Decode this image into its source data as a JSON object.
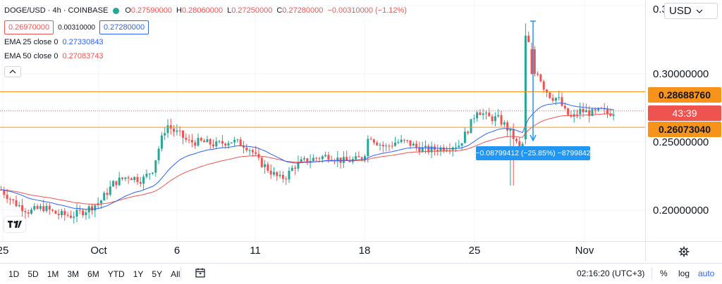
{
  "header": {
    "symbol": "DOGE/USD · 4h · COINBASE",
    "ohlc": [
      {
        "key": "O",
        "value": "0.27590000"
      },
      {
        "key": "H",
        "value": "0.28060000"
      },
      {
        "key": "L",
        "value": "0.27250000"
      },
      {
        "key": "C",
        "value": "0.27280000"
      }
    ],
    "change": "−0.00310000 (−1.12%)",
    "bid": "0.26970000",
    "spread": "0.00310000",
    "ask": "0.27280000",
    "collapse_icon": "chevron-up-icon"
  },
  "indicators": [
    {
      "label": "EMA 25 close 0",
      "value": "0.27330843",
      "color": "#2962ff"
    },
    {
      "label": "EMA 50 close 0",
      "value": "0.27083743",
      "color": "#ef5350"
    }
  ],
  "price_axis": {
    "currency": "USD",
    "currency_chevron": "chevron-down-icon",
    "ticks": [
      "0.30000000",
      "0.25000000",
      "0.20000000"
    ],
    "labels": {
      "resistance": "0.28688760",
      "countdown": "43:39",
      "support": "0.26073040"
    }
  },
  "time_axis": {
    "ticks": [
      "25",
      "Oct",
      "6",
      "11",
      "18",
      "25",
      "Nov"
    ]
  },
  "measure": {
    "text": "−0.08799412 (−25.85%) −8799842"
  },
  "bottom_bar": {
    "ranges": [
      "1D",
      "5D",
      "1M",
      "3M",
      "6M",
      "YTD",
      "1Y",
      "5Y",
      "All"
    ],
    "date_range_icon": "calendar-range-icon",
    "clock": "02:16:20 (UTC+3)",
    "percent": "%",
    "log": "log",
    "auto": "auto"
  },
  "colors": {
    "up": "#26a69a",
    "down": "#ef5350",
    "ema25": "#2962ff",
    "ema50": "#ef5350",
    "level": "#f7931a",
    "measure": "#2196f3"
  },
  "chart_data": {
    "type": "candlestick",
    "symbol": "DOGE/USD",
    "interval": "4h",
    "exchange": "COINBASE",
    "ylim": [
      0.17,
      0.36
    ],
    "x_ticks": [
      "25",
      "Oct",
      "6",
      "11",
      "18",
      "25",
      "Nov"
    ],
    "horizontal_levels": [
      0.2868876,
      0.2607304
    ],
    "last_price": 0.2728,
    "series": [
      {
        "name": "EMA 25 close 0",
        "last": 0.27330843
      },
      {
        "name": "EMA 50 close 0",
        "last": 0.27083743
      }
    ],
    "close_path": [
      [
        0,
        0.215
      ],
      [
        20,
        0.205
      ],
      [
        40,
        0.199
      ],
      [
        60,
        0.202
      ],
      [
        80,
        0.197
      ],
      [
        100,
        0.196
      ],
      [
        120,
        0.2
      ],
      [
        140,
        0.206
      ],
      [
        160,
        0.22
      ],
      [
        180,
        0.225
      ],
      [
        200,
        0.222
      ],
      [
        215,
        0.23
      ],
      [
        225,
        0.248
      ],
      [
        235,
        0.263
      ],
      [
        245,
        0.258
      ],
      [
        255,
        0.255
      ],
      [
        265,
        0.25
      ],
      [
        285,
        0.25
      ],
      [
        305,
        0.248
      ],
      [
        325,
        0.251
      ],
      [
        345,
        0.248
      ],
      [
        355,
        0.244
      ],
      [
        365,
        0.236
      ],
      [
        375,
        0.232
      ],
      [
        385,
        0.227
      ],
      [
        395,
        0.223
      ],
      [
        405,
        0.225
      ],
      [
        415,
        0.232
      ],
      [
        425,
        0.235
      ],
      [
        445,
        0.238
      ],
      [
        465,
        0.24
      ],
      [
        485,
        0.236
      ],
      [
        505,
        0.237
      ],
      [
        515,
        0.24
      ],
      [
        522,
        0.256
      ],
      [
        530,
        0.251
      ],
      [
        545,
        0.246
      ],
      [
        560,
        0.25
      ],
      [
        575,
        0.25
      ],
      [
        590,
        0.246
      ],
      [
        605,
        0.244
      ],
      [
        620,
        0.245
      ],
      [
        635,
        0.247
      ],
      [
        650,
        0.248
      ],
      [
        665,
        0.262
      ],
      [
        675,
        0.274
      ],
      [
        690,
        0.268
      ],
      [
        705,
        0.267
      ],
      [
        715,
        0.262
      ],
      [
        725,
        0.255
      ],
      [
        735,
        0.245
      ],
      [
        742,
        0.25
      ],
      [
        746,
        0.328
      ],
      [
        752,
        0.312
      ],
      [
        760,
        0.303
      ],
      [
        770,
        0.29
      ],
      [
        780,
        0.283
      ],
      [
        790,
        0.282
      ],
      [
        800,
        0.272
      ],
      [
        810,
        0.267
      ],
      [
        820,
        0.273
      ],
      [
        830,
        0.272
      ],
      [
        840,
        0.271
      ],
      [
        850,
        0.273
      ],
      [
        860,
        0.271
      ],
      [
        872,
        0.2728
      ]
    ]
  }
}
